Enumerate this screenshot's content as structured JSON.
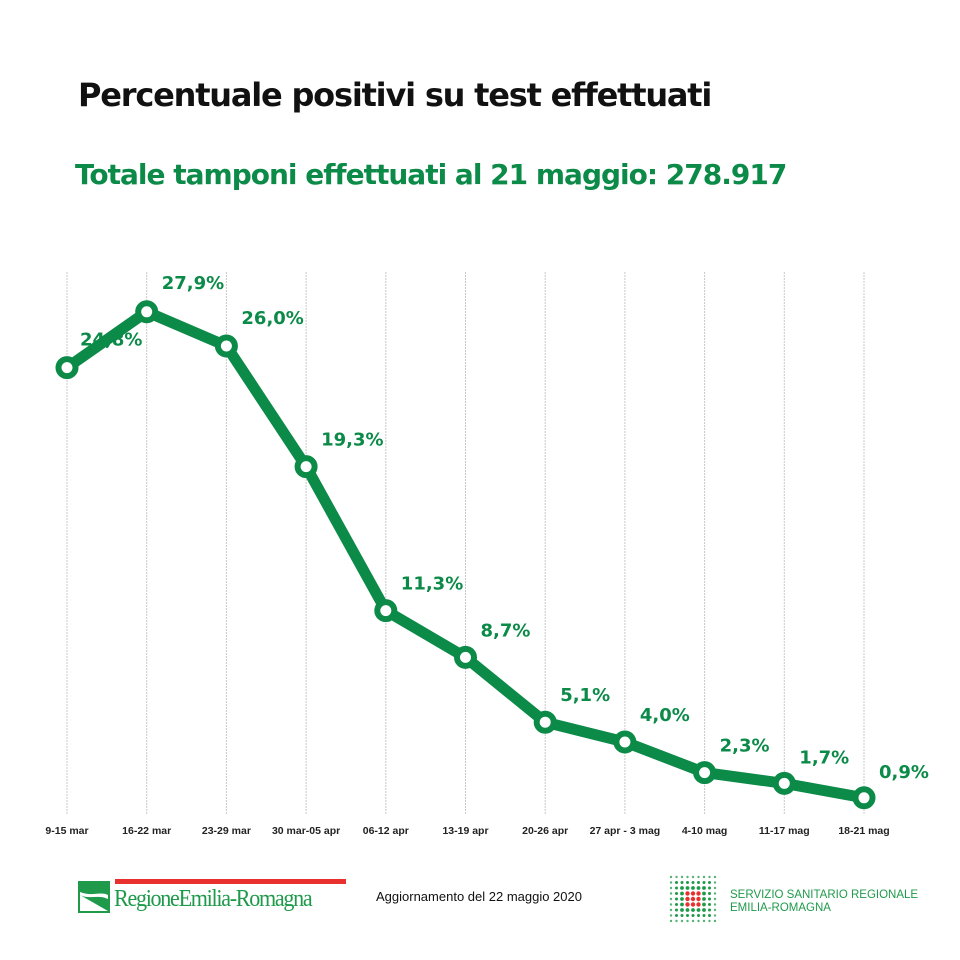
{
  "header": {
    "title": "Percentuale positivi su test effettuati",
    "subtitle": "Totale tamponi effettuati al 21 maggio:  278.917"
  },
  "chart_data": {
    "type": "line",
    "title": "Percentuale positivi su test effettuati",
    "xlabel": "",
    "ylabel": "",
    "ylim": [
      0,
      28
    ],
    "grid": "vertical",
    "categories": [
      "9-15 mar",
      "16-22 mar",
      "23-29 mar",
      "30 mar-05 apr",
      "06-12 apr",
      "13-19 apr",
      "20-26 apr",
      "27 apr - 3 mag",
      "4-10 mag",
      "11-17 mag",
      "18-21 mag"
    ],
    "values": [
      24.8,
      27.9,
      26.0,
      19.3,
      11.3,
      8.7,
      5.1,
      4.0,
      2.3,
      1.7,
      0.9
    ],
    "data_labels": [
      "24,8%",
      "27,9%",
      "26,0%",
      "19,3%",
      "11,3%",
      "8,7%",
      "5,1%",
      "4,0%",
      "2,3%",
      "1,7%",
      "0,9%"
    ],
    "line_color": "#0b8a48"
  },
  "footer": {
    "region_logo_text": "RegioneEmilia-Romagna",
    "update_text": "Aggiornamento del 22 maggio 2020",
    "health_service_line1": "SERVIZIO SANITARIO REGIONALE",
    "health_service_line2": "EMILIA-ROMAGNA"
  },
  "colors": {
    "green": "#0b8a48",
    "red": "#e8312f",
    "logo_green": "#1f9a4b"
  }
}
